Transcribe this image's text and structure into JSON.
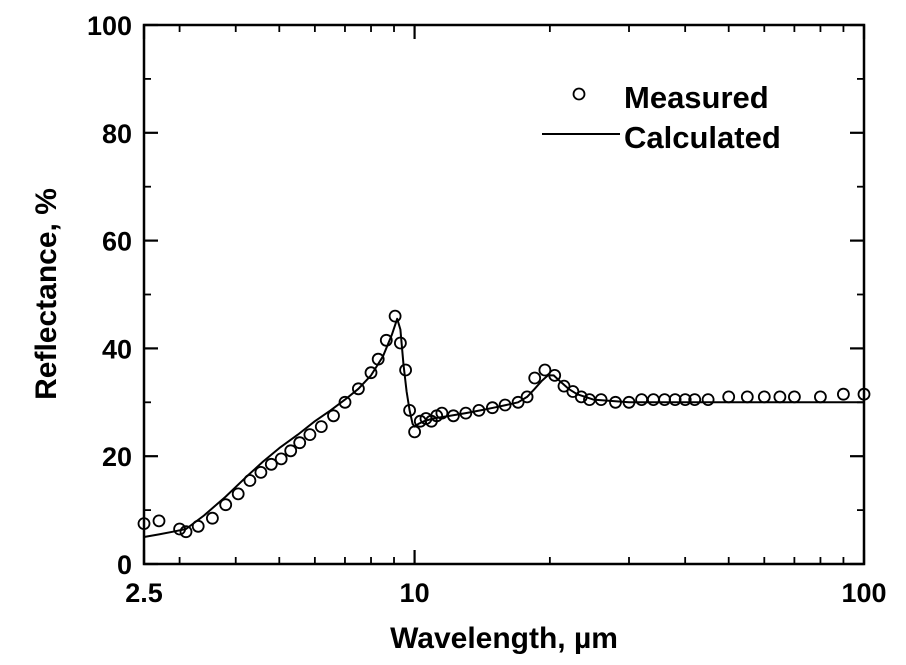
{
  "chart_data": {
    "type": "scatter",
    "title": "",
    "xlabel": "Wavelength, µm",
    "ylabel": "Reflectance, %",
    "x_scale": "log",
    "xlim": [
      2.5,
      100
    ],
    "ylim": [
      0,
      100
    ],
    "x_ticks": [
      {
        "value": 2.5,
        "label": "2.5"
      },
      {
        "value": 10,
        "label": "10"
      },
      {
        "value": 100,
        "label": "100"
      }
    ],
    "y_ticks": [
      {
        "value": 0,
        "label": "0"
      },
      {
        "value": 20,
        "label": "20"
      },
      {
        "value": 40,
        "label": "40"
      },
      {
        "value": 60,
        "label": "60"
      },
      {
        "value": 80,
        "label": "80"
      },
      {
        "value": 100,
        "label": "100"
      }
    ],
    "legend": {
      "position": "top-right",
      "entries": [
        {
          "label": "Measured",
          "marker": "open-circle"
        },
        {
          "label": "Calculated",
          "marker": "line"
        }
      ]
    },
    "series": [
      {
        "name": "Measured",
        "style": "markers",
        "x": [
          2.5,
          2.7,
          3.0,
          3.1,
          3.3,
          3.55,
          3.8,
          4.05,
          4.3,
          4.55,
          4.8,
          5.05,
          5.3,
          5.55,
          5.85,
          6.2,
          6.6,
          7.0,
          7.5,
          8.0,
          8.3,
          8.65,
          9.05,
          9.3,
          9.55,
          9.75,
          10.0,
          10.3,
          10.6,
          10.9,
          11.2,
          11.5,
          12.2,
          13.0,
          13.9,
          14.9,
          15.9,
          17.0,
          17.8,
          18.5,
          19.5,
          20.5,
          21.5,
          22.5,
          23.5,
          24.5,
          26.0,
          28.0,
          30.0,
          32.0,
          34.0,
          36.0,
          38.0,
          40.0,
          42.0,
          45.0,
          50.0,
          55.0,
          60.0,
          65.0,
          70.0,
          80.0,
          90.0,
          100.0
        ],
        "y": [
          7.5,
          8.0,
          6.5,
          6.0,
          7.0,
          8.5,
          11.0,
          13.0,
          15.5,
          17.0,
          18.5,
          19.5,
          21.0,
          22.5,
          24.0,
          25.5,
          27.5,
          30.0,
          32.5,
          35.5,
          38.0,
          41.5,
          46.0,
          41.0,
          36.0,
          28.5,
          24.5,
          26.5,
          27.0,
          26.5,
          27.5,
          28.0,
          27.5,
          28.0,
          28.5,
          29.0,
          29.5,
          30.0,
          31.0,
          34.5,
          36.0,
          35.0,
          33.0,
          32.0,
          31.0,
          30.5,
          30.5,
          30.0,
          30.0,
          30.5,
          30.5,
          30.5,
          30.5,
          30.5,
          30.5,
          30.5,
          31.0,
          31.0,
          31.0,
          31.0,
          31.0,
          31.0,
          31.5,
          31.5
        ]
      },
      {
        "name": "Calculated",
        "style": "line",
        "x": [
          2.5,
          2.7,
          2.9,
          3.1,
          3.4,
          3.8,
          4.2,
          4.6,
          5.0,
          5.5,
          6.0,
          6.5,
          7.0,
          7.5,
          8.0,
          8.5,
          8.9,
          9.15,
          9.3,
          9.45,
          9.6,
          9.75,
          9.9,
          10.0,
          10.2,
          10.5,
          11.0,
          12.0,
          13.0,
          14.0,
          15.0,
          16.0,
          17.0,
          17.8,
          18.5,
          19.2,
          19.8,
          20.4,
          21.0,
          22.0,
          23.0,
          25.0,
          30.0,
          40.0,
          60.0,
          100.0
        ],
        "y": [
          5.0,
          5.5,
          6.0,
          6.5,
          9.0,
          12.5,
          16.0,
          19.0,
          21.5,
          24.0,
          26.5,
          28.5,
          30.5,
          32.5,
          35.0,
          38.5,
          42.5,
          45.5,
          43.5,
          37.0,
          32.0,
          28.5,
          26.0,
          25.5,
          26.0,
          26.5,
          27.0,
          27.5,
          28.0,
          28.5,
          29.0,
          29.5,
          30.0,
          31.0,
          32.5,
          34.0,
          35.0,
          35.0,
          34.0,
          32.5,
          31.5,
          30.5,
          30.0,
          30.0,
          30.0,
          30.0
        ]
      }
    ]
  }
}
